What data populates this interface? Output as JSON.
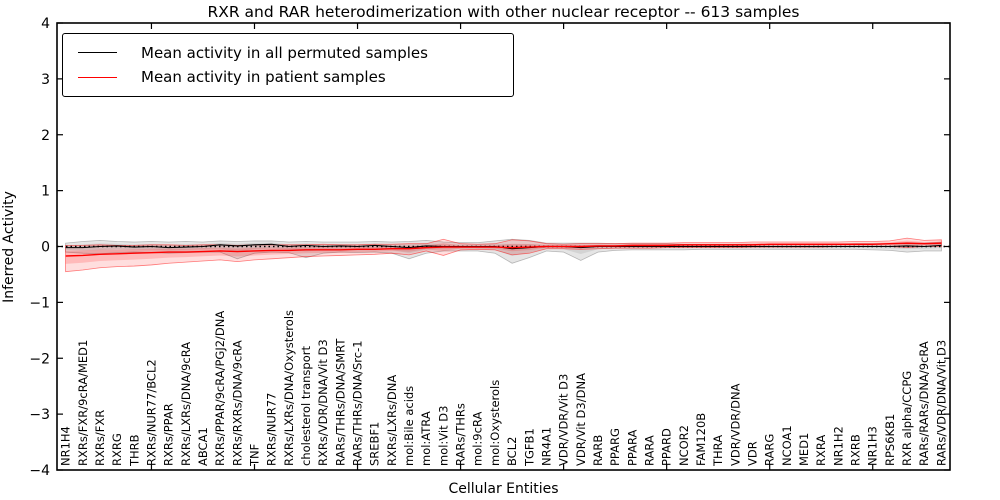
{
  "figure": {
    "title": "RXR and RAR heterodimerization with other nuclear receptor -- 613 samples",
    "xlabel": "Cellular Entities",
    "ylabel": "Inferred Activity"
  },
  "legend": {
    "items": [
      {
        "label": "Mean activity in all permuted samples",
        "color": "#000000"
      },
      {
        "label": "Mean activity in patient samples",
        "color": "#ff0000"
      }
    ]
  },
  "chart_data": {
    "type": "line",
    "title": "RXR and RAR heterodimerization with other nuclear receptor -- 613 samples",
    "xlabel": "Cellular Entities",
    "ylabel": "Inferred Activity",
    "ylim": [
      -4,
      4
    ],
    "yticks": [
      4,
      3,
      2,
      1,
      0,
      -1,
      -2,
      -3,
      -4
    ],
    "ytick_labels": [
      "4",
      "3",
      "2",
      "1",
      "0",
      "−1",
      "−2",
      "−3",
      "−4"
    ],
    "xtick_indices": [
      5,
      11,
      17,
      23,
      29,
      35,
      41,
      47
    ],
    "grid": false,
    "legend_position": "upper left",
    "zero_line": true,
    "categories": [
      "NR1H4",
      "RXRs/FXR/9cRA/MED1",
      "RXRs/FXR",
      "RXRG",
      "THRB",
      "RXRs/NUR77/BCL2",
      "RXRs/PPAR",
      "RXRs/LXRs/DNA/9cRA",
      "ABCA1",
      "RXRs/PPAR/9cRA/PGJ2/DNA",
      "RXRs/RXRs/DNA/9cRA",
      "TNF",
      "RXRs/NUR77",
      "RXRs/LXRs/DNA/Oxysterols",
      "cholesterol transport",
      "RXRs/VDR/DNA/Vit D3",
      "RARs/THRs/DNA/SMRT",
      "RARs/THRs/DNA/Src-1",
      "SREBF1",
      "RXRs/LXRs/DNA",
      "mol:Bile acids",
      "mol:ATRA",
      "mol:Vit D3",
      "RARs/THRs",
      "mol:9cRA",
      "mol:Oxysterols",
      "BCL2",
      "TGFB1",
      "NR4A1",
      "VDR/VDR/Vit D3",
      "VDR/Vit D3/DNA",
      "RARB",
      "PPARG",
      "PPARA",
      "RARA",
      "PPARD",
      "NCOR2",
      "FAM120B",
      "THRA",
      "VDR/VDR/DNA",
      "VDR",
      "RARG",
      "NCOA1",
      "MED1",
      "RXRA",
      "NR1H2",
      "RXRB",
      "NR1H3",
      "RPS6KB1",
      "RXR alpha/CCPG",
      "RARs/RARs/DNA/9cRA",
      "RARs/VDR/DNA/Vit D3"
    ],
    "series": [
      {
        "name": "Mean activity in all permuted samples",
        "color": "#000000",
        "band_outer": "rgba(0,0,0,0.10)",
        "band_inner": "rgba(0,0,0,0.08)",
        "band_edge": "rgba(0,0,0,0.25)",
        "mean": [
          -0.02,
          -0.02,
          0,
          0.01,
          -0.01,
          0,
          -0.02,
          -0.01,
          0,
          0.03,
          0.01,
          0.03,
          0.04,
          0,
          0.02,
          0,
          0.01,
          0,
          0.02,
          0,
          -0.02,
          0.01,
          0,
          0,
          0,
          0,
          -0.04,
          -0.02,
          0,
          0,
          -0.02,
          0,
          0,
          0,
          0,
          0,
          0,
          0,
          0,
          0,
          0,
          0,
          0,
          0,
          0,
          0,
          0,
          0,
          0,
          0.01,
          0,
          0.02
        ],
        "lo": [
          -0.1,
          -0.12,
          -0.13,
          -0.11,
          -0.1,
          -0.11,
          -0.12,
          -0.11,
          -0.1,
          -0.1,
          -0.22,
          -0.12,
          -0.1,
          -0.11,
          -0.2,
          -0.12,
          -0.1,
          -0.11,
          -0.1,
          -0.12,
          -0.22,
          -0.12,
          -0.08,
          -0.08,
          -0.08,
          -0.12,
          -0.3,
          -0.2,
          -0.08,
          -0.1,
          -0.25,
          -0.1,
          -0.07,
          -0.06,
          -0.06,
          -0.06,
          -0.06,
          -0.05,
          -0.05,
          -0.05,
          -0.05,
          -0.05,
          -0.05,
          -0.05,
          -0.05,
          -0.05,
          -0.05,
          -0.06,
          -0.07,
          -0.1,
          -0.08,
          -0.08
        ],
        "hi": [
          0.06,
          0.09,
          0.11,
          0.09,
          0.08,
          0.09,
          0.08,
          0.09,
          0.08,
          0.1,
          0.09,
          0.1,
          0.1,
          0.08,
          0.09,
          0.08,
          0.08,
          0.08,
          0.09,
          0.08,
          0.09,
          0.11,
          0.08,
          0.07,
          0.07,
          0.1,
          0.13,
          0.11,
          0.06,
          0.06,
          0.06,
          0.06,
          0.05,
          0.05,
          0.05,
          0.05,
          0.04,
          0.04,
          0.04,
          0.04,
          0.04,
          0.04,
          0.04,
          0.04,
          0.04,
          0.04,
          0.05,
          0.05,
          0.05,
          0.07,
          0.06,
          0.08
        ]
      },
      {
        "name": "Mean activity in patient samples",
        "color": "#ff0000",
        "band_outer": "rgba(255,0,0,0.13)",
        "band_inner": "rgba(255,0,0,0.16)",
        "band_edge": "rgba(255,0,0,0.5)",
        "mean": [
          -0.17,
          -0.16,
          -0.14,
          -0.13,
          -0.12,
          -0.11,
          -0.1,
          -0.1,
          -0.09,
          -0.08,
          -0.09,
          -0.08,
          -0.07,
          -0.07,
          -0.06,
          -0.06,
          -0.06,
          -0.05,
          -0.05,
          -0.04,
          -0.04,
          -0.02,
          -0.01,
          -0.01,
          -0.01,
          -0.01,
          -0.02,
          -0.01,
          0,
          0,
          0,
          0.01,
          0.01,
          0.02,
          0.02,
          0.02,
          0.03,
          0.03,
          0.03,
          0.03,
          0.03,
          0.04,
          0.04,
          0.04,
          0.04,
          0.04,
          0.04,
          0.04,
          0.05,
          0.06,
          0.05,
          0.06
        ],
        "lo": [
          -0.45,
          -0.42,
          -0.38,
          -0.36,
          -0.35,
          -0.33,
          -0.3,
          -0.28,
          -0.26,
          -0.24,
          -0.27,
          -0.24,
          -0.22,
          -0.2,
          -0.18,
          -0.17,
          -0.16,
          -0.15,
          -0.14,
          -0.12,
          -0.15,
          -0.08,
          -0.16,
          -0.06,
          -0.05,
          -0.06,
          -0.15,
          -0.12,
          -0.04,
          -0.04,
          -0.05,
          -0.04,
          -0.03,
          -0.03,
          -0.03,
          -0.02,
          -0.02,
          -0.02,
          -0.02,
          -0.02,
          -0.01,
          -0.01,
          -0.01,
          -0.01,
          -0.01,
          0,
          0,
          0,
          0,
          -0.02,
          0,
          0
        ],
        "hi": [
          0.02,
          0.02,
          0.03,
          0.02,
          0.02,
          0.03,
          0.03,
          0.02,
          0.03,
          0.03,
          0.02,
          0.03,
          0.03,
          0.03,
          0.03,
          0.04,
          0.03,
          0.03,
          0.04,
          0.04,
          0.05,
          0.05,
          0.13,
          0.05,
          0.04,
          0.05,
          0.12,
          0.1,
          0.05,
          0.04,
          0.05,
          0.05,
          0.05,
          0.06,
          0.06,
          0.06,
          0.07,
          0.07,
          0.07,
          0.07,
          0.08,
          0.08,
          0.08,
          0.08,
          0.08,
          0.08,
          0.09,
          0.09,
          0.1,
          0.15,
          0.11,
          0.12
        ]
      }
    ]
  }
}
